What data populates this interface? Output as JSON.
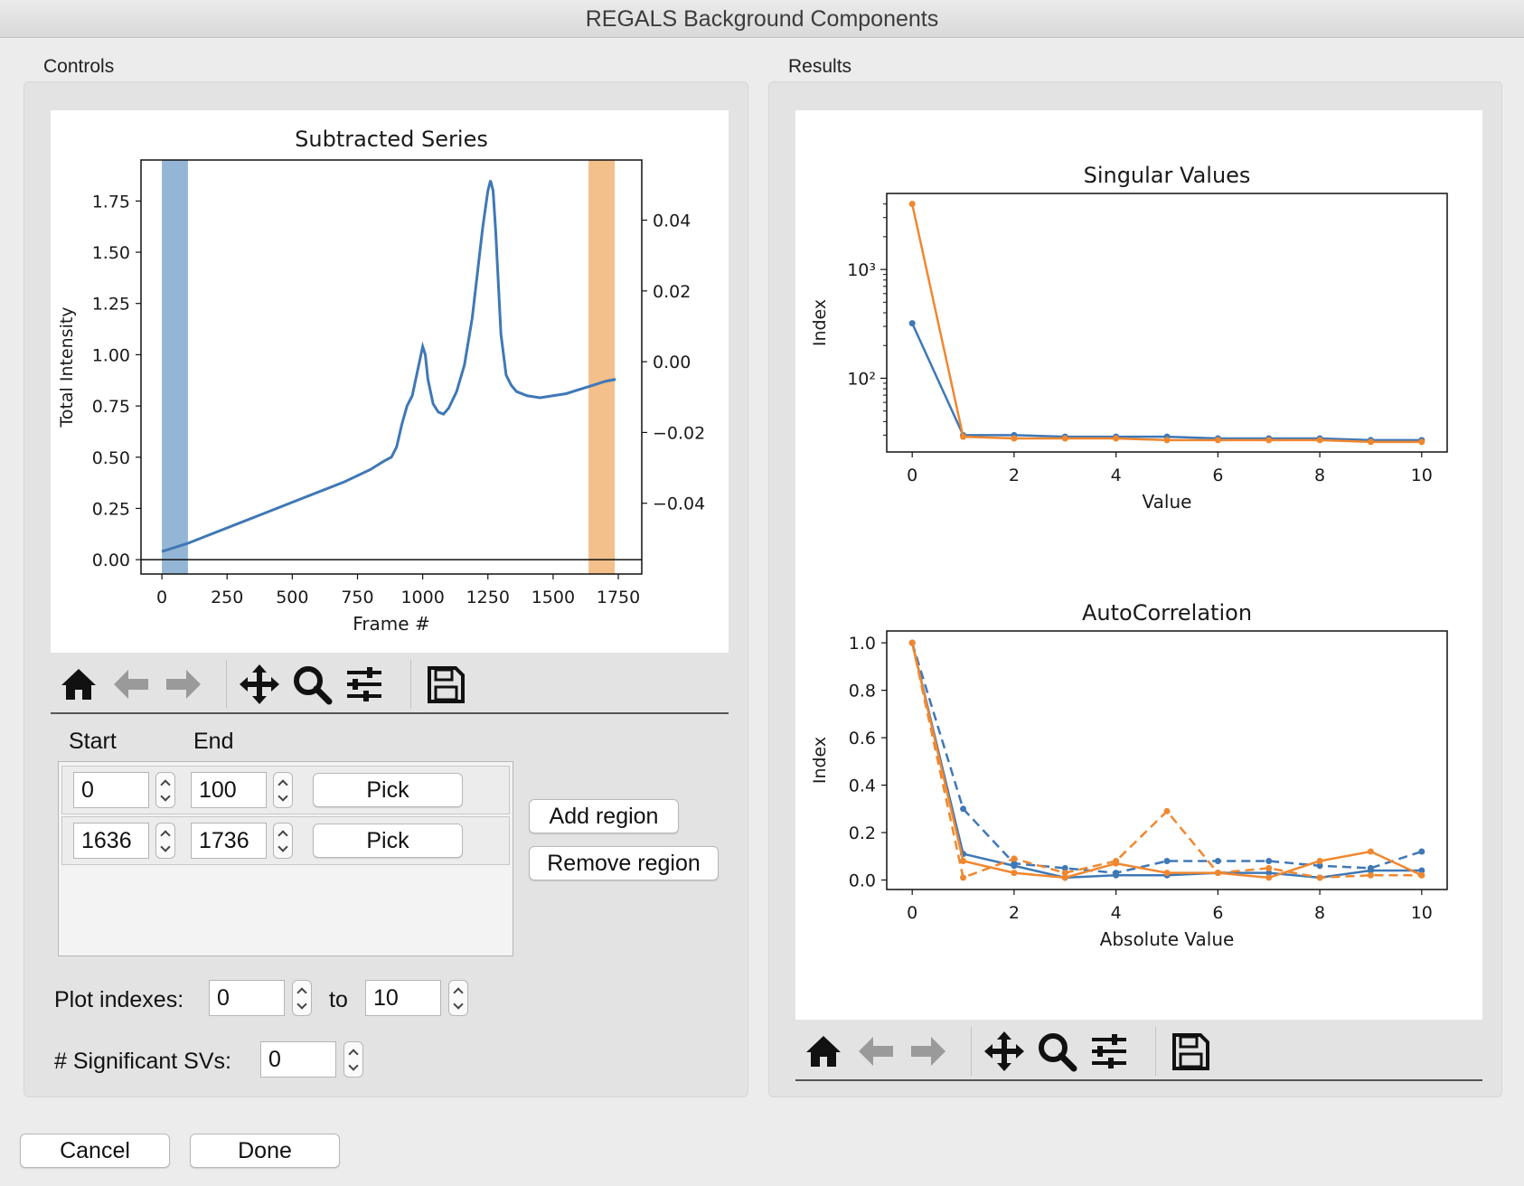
{
  "window": {
    "title": "REGALS Background Components"
  },
  "controls": {
    "group_label": "Controls",
    "plot": {
      "title": "Subtracted Series",
      "xlabel": "Frame #",
      "ylabel": "Total Intensity",
      "x_ticks": [
        "0",
        "250",
        "500",
        "750",
        "1000",
        "1250",
        "1500",
        "1750"
      ],
      "y_ticks": [
        "0.00",
        "0.25",
        "0.50",
        "0.75",
        "1.00",
        "1.25",
        "1.50",
        "1.75"
      ],
      "y2_ticks": [
        "0.04",
        "0.02",
        "0.00",
        "−0.02",
        "−0.04"
      ]
    },
    "regions_header": {
      "start": "Start",
      "end": "End"
    },
    "regions": [
      {
        "start": "0",
        "end": "100",
        "pick_label": "Pick"
      },
      {
        "start": "1636",
        "end": "1736",
        "pick_label": "Pick"
      }
    ],
    "add_region_label": "Add region",
    "remove_region_label": "Remove region",
    "plot_indexes_label": "Plot indexes:",
    "plot_index_start": "0",
    "to_label": "to",
    "plot_index_end": "10",
    "significant_svs_label": "# Significant SVs:",
    "significant_svs_value": "0"
  },
  "results": {
    "group_label": "Results",
    "sv_plot": {
      "title": "Singular Values",
      "xlabel": "Value",
      "ylabel": "Index",
      "x_ticks": [
        "0",
        "2",
        "4",
        "6",
        "8",
        "10"
      ],
      "y_ticks": [
        "10³",
        "10²"
      ]
    },
    "ac_plot": {
      "title": "AutoCorrelation",
      "xlabel": "Absolute Value",
      "ylabel": "Index",
      "x_ticks": [
        "0",
        "2",
        "4",
        "6",
        "8",
        "10"
      ],
      "y_ticks": [
        "0.0",
        "0.2",
        "0.4",
        "0.6",
        "0.8",
        "1.0"
      ]
    }
  },
  "footer": {
    "cancel_label": "Cancel",
    "done_label": "Done"
  },
  "toolbar_icons": [
    "home-icon",
    "back-arrow-icon",
    "forward-arrow-icon",
    "pan-icon",
    "zoom-icon",
    "configure-subplots-icon",
    "save-icon"
  ],
  "colors": {
    "blue": "#3f78b6",
    "orange": "#f0872f",
    "blue_region": "#94b6d6",
    "orange_region": "#f3bf8a"
  },
  "chart_data": [
    {
      "type": "line",
      "title": "Subtracted Series",
      "xlabel": "Frame #",
      "ylabel": "Total Intensity",
      "xlim": [
        -80,
        1840
      ],
      "ylim": [
        -0.07,
        1.95
      ],
      "y2lim": [
        -0.06,
        0.057
      ],
      "x": [
        0,
        50,
        100,
        200,
        300,
        400,
        500,
        600,
        700,
        800,
        850,
        880,
        900,
        920,
        940,
        960,
        980,
        1000,
        1010,
        1020,
        1040,
        1060,
        1080,
        1100,
        1130,
        1160,
        1190,
        1210,
        1230,
        1250,
        1260,
        1270,
        1280,
        1290,
        1300,
        1320,
        1340,
        1360,
        1400,
        1450,
        1500,
        1550,
        1600,
        1650,
        1700,
        1740
      ],
      "y": [
        0.04,
        0.06,
        0.08,
        0.13,
        0.18,
        0.23,
        0.28,
        0.33,
        0.38,
        0.44,
        0.48,
        0.5,
        0.55,
        0.66,
        0.75,
        0.8,
        0.92,
        1.04,
        1.0,
        0.88,
        0.76,
        0.72,
        0.71,
        0.74,
        0.82,
        0.95,
        1.18,
        1.4,
        1.62,
        1.8,
        1.85,
        1.8,
        1.6,
        1.35,
        1.1,
        0.9,
        0.85,
        0.82,
        0.8,
        0.79,
        0.8,
        0.81,
        0.83,
        0.85,
        0.87,
        0.88
      ],
      "regions": [
        {
          "start": 0,
          "end": 100,
          "color": "#94b6d6"
        },
        {
          "start": 1636,
          "end": 1736,
          "color": "#f3bf8a"
        }
      ]
    },
    {
      "type": "line",
      "title": "Singular Values",
      "xlabel": "Value",
      "ylabel": "Index",
      "yscale": "log",
      "xlim": [
        -0.5,
        10.5
      ],
      "ylim": [
        21,
        5000
      ],
      "x": [
        0,
        1,
        2,
        3,
        4,
        5,
        6,
        7,
        8,
        9,
        10
      ],
      "series": [
        {
          "color": "#3f78b6",
          "values": [
            320,
            30,
            30,
            29,
            29,
            29,
            28,
            28,
            28,
            27,
            27
          ]
        },
        {
          "color": "#f0872f",
          "values": [
            4000,
            29,
            28,
            28,
            28,
            27,
            27,
            27,
            27,
            26,
            26
          ]
        }
      ]
    },
    {
      "type": "line",
      "title": "AutoCorrelation",
      "xlabel": "Absolute Value",
      "ylabel": "Index",
      "xlim": [
        -0.5,
        10.5
      ],
      "ylim": [
        -0.04,
        1.05
      ],
      "x": [
        0,
        1,
        2,
        3,
        4,
        5,
        6,
        7,
        8,
        9,
        10
      ],
      "series": [
        {
          "color": "#3f78b6",
          "dash": "solid",
          "values": [
            1.0,
            0.11,
            0.06,
            0.01,
            0.02,
            0.02,
            0.03,
            0.03,
            0.01,
            0.04,
            0.04
          ]
        },
        {
          "color": "#3f78b6",
          "dash": "dashed",
          "values": [
            1.0,
            0.3,
            0.07,
            0.05,
            0.03,
            0.08,
            0.08,
            0.08,
            0.06,
            0.05,
            0.12
          ]
        },
        {
          "color": "#f0872f",
          "dash": "solid",
          "values": [
            1.0,
            0.08,
            0.03,
            0.01,
            0.07,
            0.03,
            0.03,
            0.01,
            0.08,
            0.12,
            0.02
          ]
        },
        {
          "color": "#f0872f",
          "dash": "dashed",
          "values": [
            1.0,
            0.01,
            0.09,
            0.03,
            0.08,
            0.29,
            0.03,
            0.05,
            0.01,
            0.02,
            0.02
          ]
        }
      ]
    }
  ]
}
